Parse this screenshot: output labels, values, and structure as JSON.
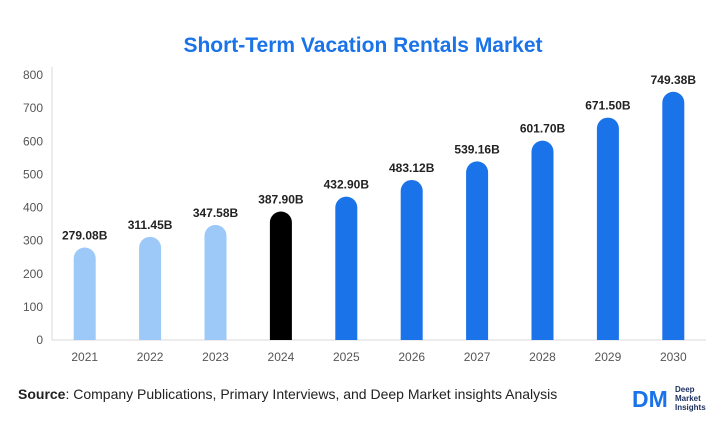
{
  "chart_data": {
    "type": "bar",
    "title": "Short-Term Vacation Rentals Market",
    "categories": [
      "2021",
      "2022",
      "2023",
      "2024",
      "2025",
      "2026",
      "2027",
      "2028",
      "2029",
      "2030"
    ],
    "values": [
      279.08,
      311.45,
      347.58,
      387.9,
      432.9,
      483.12,
      539.16,
      601.7,
      671.5,
      749.38
    ],
    "value_labels": [
      "279.08B",
      "311.45B",
      "347.58B",
      "387.90B",
      "432.90B",
      "483.12B",
      "539.16B",
      "601.70B",
      "671.50B",
      "749.38B"
    ],
    "bar_colors": [
      "#9dc9f8",
      "#9dc9f8",
      "#9dc9f8",
      "#000000",
      "#1a73e8",
      "#1a73e8",
      "#1a73e8",
      "#1a73e8",
      "#1a73e8",
      "#1a73e8"
    ],
    "yticks": [
      "0",
      "100",
      "200",
      "300",
      "400",
      "500",
      "600",
      "700",
      "800"
    ],
    "ylim": [
      0,
      800
    ],
    "grid": false,
    "xlabel": "",
    "ylabel": ""
  },
  "source": {
    "label": "Source",
    "text": ": Company Publications, Primary Interviews, and Deep Market insights Analysis"
  },
  "logo": {
    "mark_text": "DM",
    "line1": "Deep",
    "line2": "Market",
    "line3": "Insights",
    "color": "#1a73e8"
  }
}
